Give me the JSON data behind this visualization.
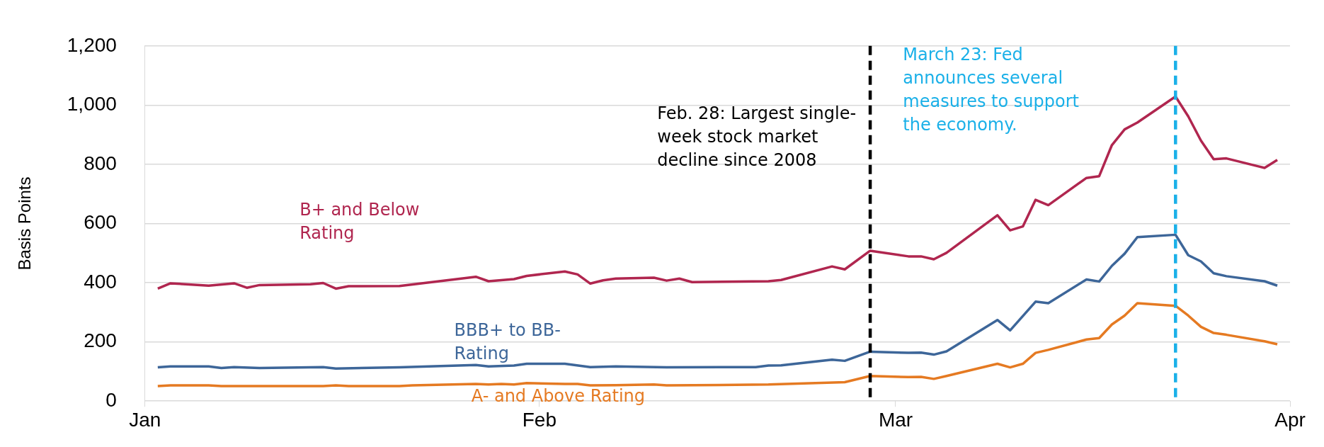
{
  "chart_data": {
    "type": "line",
    "ylabel": "Basis Points",
    "xlim": [
      "--01-01",
      "--04-01"
    ],
    "xticks": [
      {
        "value": "--01-01",
        "label": "Jan"
      },
      {
        "value": "--02-01",
        "label": "Feb"
      },
      {
        "value": "--03-01",
        "label": "Mar"
      },
      {
        "value": "--04-01",
        "label": "Apr"
      }
    ],
    "ylim": [
      0,
      1200
    ],
    "yticks": [
      0,
      200,
      400,
      600,
      800,
      {
        "value": 1000,
        "label": "1,000"
      },
      {
        "value": 1200,
        "label": "1,200"
      }
    ],
    "grid": "y",
    "marker": "none",
    "line_style": "solid",
    "series": [
      {
        "name": "B+ and Below Rating",
        "color": "#b0264f",
        "x": [
          "--01-02",
          "--01-03",
          "--01-06",
          "--01-08",
          "--01-09",
          "--01-10",
          "--01-14",
          "--01-15",
          "--01-16",
          "--01-17",
          "--01-21",
          "--01-27",
          "--01-28",
          "--01-30",
          "--01-31",
          "--02-03",
          "--02-04",
          "--02-05",
          "--02-06",
          "--02-07",
          "--02-10",
          "--02-11",
          "--02-12",
          "--02-13",
          "--02-19",
          "--02-20",
          "--02-24",
          "--02-25",
          "--02-27",
          "--03-02",
          "--03-03",
          "--03-04",
          "--03-05",
          "--03-09",
          "--03-10",
          "--03-11",
          "--03-12",
          "--03-13",
          "--03-16",
          "--03-17",
          "--03-18",
          "--03-19",
          "--03-20",
          "--03-23",
          "--03-24",
          "--03-25",
          "--03-26",
          "--03-27",
          "--03-30",
          "--03-31"
        ],
        "values": [
          380,
          398,
          390,
          398,
          383,
          392,
          395,
          399,
          380,
          388,
          389,
          420,
          405,
          412,
          423,
          438,
          428,
          397,
          408,
          414,
          417,
          407,
          414,
          402,
          405,
          409,
          455,
          445,
          508,
          489,
          489,
          479,
          501,
          628,
          577,
          590,
          680,
          662,
          754,
          760,
          865,
          918,
          941,
          1029,
          962,
          880,
          817,
          820,
          788,
          815
        ]
      },
      {
        "name": "BBB+ to BB- Rating",
        "color": "#3d6699",
        "x": [
          "--01-02",
          "--01-03",
          "--01-06",
          "--01-07",
          "--01-08",
          "--01-10",
          "--01-15",
          "--01-16",
          "--01-21",
          "--01-27",
          "--01-28",
          "--01-30",
          "--01-31",
          "--02-03",
          "--02-05",
          "--02-07",
          "--02-11",
          "--02-18",
          "--02-19",
          "--02-20",
          "--02-24",
          "--02-25",
          "--02-27",
          "--03-02",
          "--03-03",
          "--03-04",
          "--03-05",
          "--03-09",
          "--03-10",
          "--03-12",
          "--03-13",
          "--03-16",
          "--03-17",
          "--03-18",
          "--03-19",
          "--03-20",
          "--03-23",
          "--03-24",
          "--03-25",
          "--03-26",
          "--03-27",
          "--03-30",
          "--03-31"
        ],
        "values": [
          114,
          117,
          117,
          112,
          115,
          112,
          115,
          110,
          114,
          122,
          117,
          120,
          126,
          126,
          115,
          117,
          114,
          115,
          120,
          121,
          140,
          136,
          167,
          163,
          164,
          157,
          168,
          274,
          239,
          336,
          331,
          411,
          404,
          457,
          498,
          554,
          562,
          493,
          472,
          432,
          422,
          405,
          390
        ]
      },
      {
        "name": "A- and Above Rating",
        "color": "#e57a22",
        "x": [
          "--01-02",
          "--01-03",
          "--01-06",
          "--01-07",
          "--01-15",
          "--01-16",
          "--01-17",
          "--01-21",
          "--01-22",
          "--01-27",
          "--01-28",
          "--01-29",
          "--01-30",
          "--01-31",
          "--02-03",
          "--02-04",
          "--02-05",
          "--02-07",
          "--02-10",
          "--02-11",
          "--02-19",
          "--02-25",
          "--02-27",
          "--03-02",
          "--03-03",
          "--03-04",
          "--03-05",
          "--03-09",
          "--03-10",
          "--03-11",
          "--03-12",
          "--03-13",
          "--03-16",
          "--03-17",
          "--03-18",
          "--03-19",
          "--03-20",
          "--03-23",
          "--03-24",
          "--03-25",
          "--03-26",
          "--03-27",
          "--03-30",
          "--03-31"
        ],
        "values": [
          51,
          53,
          53,
          51,
          51,
          53,
          51,
          51,
          53,
          58,
          56,
          58,
          56,
          61,
          58,
          58,
          53,
          54,
          56,
          53,
          56,
          64,
          85,
          81,
          82,
          75,
          85,
          126,
          114,
          126,
          163,
          173,
          208,
          213,
          259,
          289,
          331,
          322,
          289,
          251,
          230,
          224,
          202,
          192
        ]
      }
    ],
    "ref_lines": [
      {
        "axis": "x",
        "value": "--02-27",
        "label": "Feb. 28: Largest single-week stock market decline since 2008",
        "color": "#000000",
        "line_style": "dashed"
      },
      {
        "axis": "x",
        "value": "--03-23",
        "label": "March 23: Fed announces several measures to support the economy.",
        "color": "#1ab0e8",
        "line_style": "dashed"
      }
    ]
  }
}
